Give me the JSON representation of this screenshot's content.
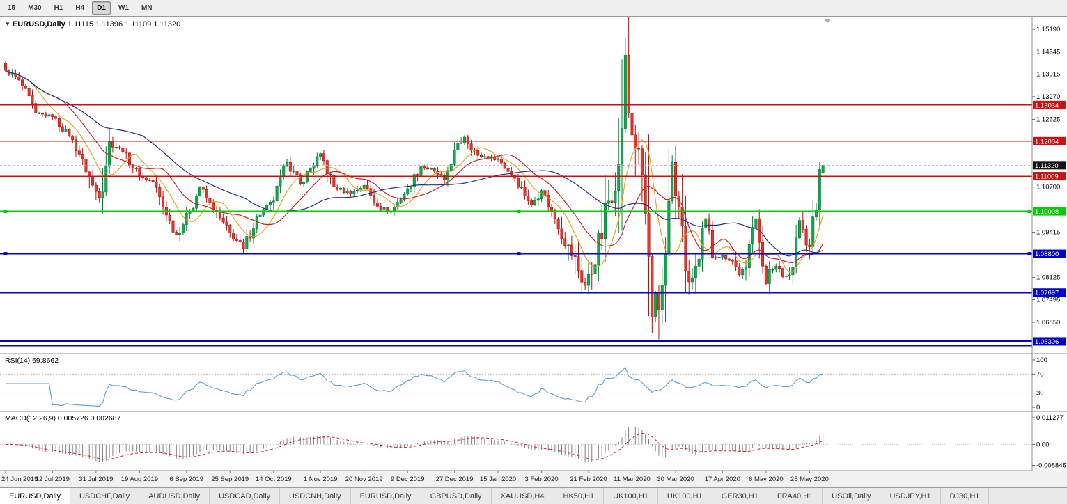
{
  "toolbar": {
    "timeframes": [
      {
        "label": "15",
        "active": false
      },
      {
        "label": "M30",
        "active": false
      },
      {
        "label": "H1",
        "active": false
      },
      {
        "label": "H4",
        "active": false
      },
      {
        "label": "D1",
        "active": true
      },
      {
        "label": "W1",
        "active": false
      },
      {
        "label": "MN",
        "active": false
      }
    ]
  },
  "chart": {
    "title_symbol": "EURUSD,Daily",
    "title_ohlc": "1.11115 1.11396 1.11109 1.11320"
  },
  "rsi": {
    "label": "RSI(14) 69.8662",
    "color": "#5a9bd4",
    "levels": [
      70,
      30
    ],
    "axis": [
      {
        "label": "100",
        "v": 100
      },
      {
        "label": "70",
        "v": 70
      },
      {
        "label": "30",
        "v": 30
      },
      {
        "label": "0",
        "v": 0
      }
    ]
  },
  "macd": {
    "label": "MACD(12,26,9) 0.005726 0.002687",
    "hist_color": "#7f7f7f",
    "signal_color": "#cc2222",
    "axis": [
      {
        "label": "0.011277",
        "v": 0.011277
      },
      {
        "label": "0.00",
        "v": 0
      },
      {
        "label": "-0.008845",
        "v": -0.008845
      }
    ]
  },
  "price_axis": {
    "ticks": [
      {
        "label": "1.15190",
        "price": 1.1519
      },
      {
        "label": "1.14545",
        "price": 1.14545
      },
      {
        "label": "1.13915",
        "price": 1.13915
      },
      {
        "label": "1.13270",
        "price": 1.1327
      },
      {
        "label": "1.12625",
        "price": 1.12625
      },
      {
        "label": "1.10700",
        "price": 1.107
      },
      {
        "label": "1.09415",
        "price": 1.09415
      },
      {
        "label": "1.08125",
        "price": 1.08125
      },
      {
        "label": "1.07495",
        "price": 1.07495
      },
      {
        "label": "1.06850",
        "price": 1.0685
      }
    ],
    "current": {
      "label": "1.11320",
      "price": 1.1132,
      "bg": "#111111"
    }
  },
  "hlines": [
    {
      "price": 1.13034,
      "color": "#cc1111",
      "width": 1.4,
      "badge": "1.13034"
    },
    {
      "price": 1.12004,
      "color": "#cc1111",
      "width": 1.4,
      "badge": "1.12004"
    },
    {
      "price": 1.11009,
      "color": "#cc1111",
      "width": 1.4,
      "badge": "1.11009"
    },
    {
      "price": 1.10008,
      "color": "#00ce00",
      "width": 2.2,
      "badge": "1.10008",
      "handles": true
    },
    {
      "price": 1.088,
      "color": "#0000cc",
      "width": 2.2,
      "badge": "1.08800",
      "handles": true
    },
    {
      "price": 1.07697,
      "color": "#0000cc",
      "width": 2.2,
      "badge": "1.07697"
    },
    {
      "price": 1.06306,
      "color": "#0000cc",
      "width": 3.0,
      "badge": "1.06306"
    },
    {
      "price": 1.0619,
      "color": "#0000cc",
      "width": 2.0,
      "badge": null
    }
  ],
  "date_axis": [
    {
      "label": "24 Jun 2019",
      "bar": 0
    },
    {
      "label": "12 Jul 2019",
      "bar": 14
    },
    {
      "label": "31 Jul 2019",
      "bar": 27
    },
    {
      "label": "19 Aug 2019",
      "bar": 40
    },
    {
      "label": "6 Sep 2019",
      "bar": 54
    },
    {
      "label": "25 Sep 2019",
      "bar": 67
    },
    {
      "label": "14 Oct 2019",
      "bar": 80
    },
    {
      "label": "1 Nov 2019",
      "bar": 94
    },
    {
      "label": "20 Nov 2019",
      "bar": 107
    },
    {
      "label": "9 Dec 2019",
      "bar": 120
    },
    {
      "label": "27 Dec 2019",
      "bar": 134
    },
    {
      "label": "15 Jan 2020",
      "bar": 147
    },
    {
      "label": "3 Feb 2020",
      "bar": 160
    },
    {
      "label": "21 Feb 2020",
      "bar": 174
    },
    {
      "label": "11 Mar 2020",
      "bar": 187
    },
    {
      "label": "30 Mar 2020",
      "bar": 200
    },
    {
      "label": "17 Apr 2020",
      "bar": 214
    },
    {
      "label": "6 May 2020",
      "bar": 227
    },
    {
      "label": "25 May 2020",
      "bar": 240
    }
  ],
  "tabs": [
    {
      "label": "EURUSD,Daily",
      "active": true
    },
    {
      "label": "USDCHF,Daily",
      "active": false
    },
    {
      "label": "AUDUSD,Daily",
      "active": false
    },
    {
      "label": "USDCAD,Daily",
      "active": false
    },
    {
      "label": "USDCNH,Daily",
      "active": false
    },
    {
      "label": "EURUSD,Daily",
      "active": false
    },
    {
      "label": "GBPUSD,Daily",
      "active": false
    },
    {
      "label": "XAUUSD,H4",
      "active": false
    },
    {
      "label": "HK50,H1",
      "active": false
    },
    {
      "label": "UK100,H1",
      "active": false
    },
    {
      "label": "UK100,H1",
      "active": false
    },
    {
      "label": "GER30,H1",
      "active": false
    },
    {
      "label": "FRA40,H1",
      "active": false
    },
    {
      "label": "USOil,Daily",
      "active": false
    },
    {
      "label": "USDJPY,H1",
      "active": false
    },
    {
      "label": "DJ30,H1",
      "active": false
    }
  ],
  "chart_data": {
    "type": "candlestick",
    "symbol": "EURUSD",
    "timeframe": "Daily",
    "bars": 245,
    "x_range": [
      "24 Jun 2019",
      "29 May 2020"
    ],
    "price_axis_visible_range": [
      1.0596,
      1.1555
    ],
    "ohlc_last": {
      "open": 1.11115,
      "high": 1.11396,
      "low": 1.11109,
      "close": 1.1132
    },
    "close_anchors": [
      [
        0,
        1.1402
      ],
      [
        4,
        1.1375
      ],
      [
        9,
        1.128
      ],
      [
        14,
        1.127
      ],
      [
        19,
        1.1215
      ],
      [
        23,
        1.115
      ],
      [
        26,
        1.1075
      ],
      [
        28,
        1.104
      ],
      [
        31,
        1.12
      ],
      [
        35,
        1.117
      ],
      [
        40,
        1.11
      ],
      [
        44,
        1.1085
      ],
      [
        48,
        1.099
      ],
      [
        51,
        1.0935
      ],
      [
        55,
        1.1
      ],
      [
        58,
        1.107
      ],
      [
        62,
        1.1005
      ],
      [
        67,
        1.094
      ],
      [
        71,
        1.0895
      ],
      [
        75,
        1.0985
      ],
      [
        80,
        1.103
      ],
      [
        84,
        1.114
      ],
      [
        88,
        1.108
      ],
      [
        94,
        1.1165
      ],
      [
        98,
        1.107
      ],
      [
        103,
        1.105
      ],
      [
        107,
        1.1075
      ],
      [
        111,
        1.1015
      ],
      [
        115,
        1.1
      ],
      [
        120,
        1.1065
      ],
      [
        124,
        1.113
      ],
      [
        128,
        1.1115
      ],
      [
        131,
        1.109
      ],
      [
        134,
        1.1175
      ],
      [
        137,
        1.1212
      ],
      [
        141,
        1.116
      ],
      [
        147,
        1.115
      ],
      [
        152,
        1.1095
      ],
      [
        157,
        1.102
      ],
      [
        160,
        1.106
      ],
      [
        164,
        1.098
      ],
      [
        168,
        1.0905
      ],
      [
        173,
        1.079
      ],
      [
        176,
        1.085
      ],
      [
        180,
        1.103
      ],
      [
        183,
        1.1135
      ],
      [
        185,
        1.1445
      ],
      [
        186,
        1.128
      ],
      [
        188,
        1.118
      ],
      [
        190,
        1.1105
      ],
      [
        191,
        1.0995
      ],
      [
        193,
        1.07
      ],
      [
        194,
        1.077
      ],
      [
        195,
        1.072
      ],
      [
        196,
        1.079
      ],
      [
        197,
        1.088
      ],
      [
        198,
        1.103
      ],
      [
        199,
        1.114
      ],
      [
        200,
        1.1045
      ],
      [
        202,
        1.096
      ],
      [
        204,
        1.08
      ],
      [
        207,
        1.0865
      ],
      [
        209,
        1.098
      ],
      [
        211,
        1.087
      ],
      [
        214,
        1.0875
      ],
      [
        217,
        1.086
      ],
      [
        219,
        1.082
      ],
      [
        221,
        1.084
      ],
      [
        223,
        1.0955
      ],
      [
        224,
        1.098
      ],
      [
        226,
        1.0845
      ],
      [
        227,
        1.0795
      ],
      [
        228,
        1.0835
      ],
      [
        230,
        1.0845
      ],
      [
        232,
        1.0815
      ],
      [
        234,
        1.082
      ],
      [
        236,
        1.0925
      ],
      [
        237,
        1.0975
      ],
      [
        238,
        1.095
      ],
      [
        239,
        1.0905
      ],
      [
        240,
        1.09
      ],
      [
        241,
        1.0985
      ],
      [
        242,
        1.1005
      ],
      [
        243,
        1.112
      ],
      [
        244,
        1.1132
      ]
    ],
    "forced_extremes": {
      "71": {
        "low": 1.0879
      },
      "173": {
        "low": 1.0778
      },
      "185": {
        "high": 1.1495
      },
      "193": {
        "low": 1.0655
      },
      "195": {
        "low": 1.0636
      },
      "228": {
        "low": 1.0766
      },
      "243": {
        "high": 1.1142
      }
    },
    "up_color": "#12a94e",
    "up_border": "#0a7a36",
    "down_color": "#e8372a",
    "down_border": "#a81510",
    "moving_averages": [
      {
        "period": 9,
        "color": "#eaa221"
      },
      {
        "period": 18,
        "color": "#cc2020"
      },
      {
        "period": 42,
        "color": "#20308f"
      }
    ],
    "rsi_period": 14,
    "macd": {
      "fast": 12,
      "slow": 26,
      "signal": 9
    }
  }
}
